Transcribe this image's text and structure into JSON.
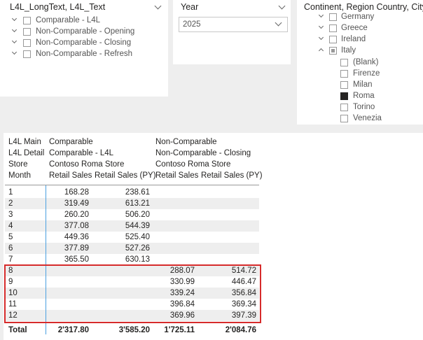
{
  "slicers": [
    {
      "title": "L4L_LongText, L4L_Text",
      "items": [
        "Comparable - L4L",
        "Non-Comparable - Opening",
        "Non-Comparable - Closing",
        "Non-Comparable - Refresh"
      ]
    },
    {
      "title": "Year",
      "selected": "2025"
    },
    {
      "title": "Continent, Region Country, City",
      "items": [
        "Germany",
        "Greece",
        "Ireland",
        "Italy"
      ],
      "children": [
        "(Blank)",
        "Firenze",
        "Milan",
        "Roma",
        "Torino",
        "Venezia"
      ]
    }
  ],
  "table": {
    "header_rows": [
      [
        "L4L Main",
        "Comparable",
        "Non-Comparable"
      ],
      [
        "L4L Detail",
        "Comparable - L4L",
        "Non-Comparable - Closing"
      ],
      [
        "Store",
        "Contoso Roma Store",
        "Contoso Roma Store"
      ],
      [
        "Month",
        "Retail Sales",
        "Retail Sales (PY)",
        "Retail Sales",
        "Retail Sales (PY)"
      ]
    ],
    "rows": [
      [
        "1",
        "168.28",
        "238.61",
        null,
        null
      ],
      [
        "2",
        "319.49",
        "613.21",
        null,
        null
      ],
      [
        "3",
        "260.20",
        "506.20",
        null,
        null
      ],
      [
        "4",
        "377.08",
        "544.39",
        null,
        null
      ],
      [
        "5",
        "449.36",
        "525.40",
        null,
        null
      ],
      [
        "6",
        "377.89",
        "527.26",
        null,
        null
      ],
      [
        "7",
        "365.50",
        "630.13",
        null,
        null
      ],
      [
        "8",
        null,
        null,
        "288.07",
        "514.72"
      ],
      [
        "9",
        null,
        null,
        "330.99",
        "446.47"
      ],
      [
        "10",
        null,
        null,
        "339.24",
        "356.84"
      ],
      [
        "11",
        null,
        null,
        "396.84",
        "369.34"
      ],
      [
        "12",
        null,
        null,
        "369.96",
        "397.39"
      ]
    ],
    "total": [
      "Total",
      "2'317.80",
      "3'585.20",
      "1'725.11",
      "2'084.76"
    ]
  }
}
